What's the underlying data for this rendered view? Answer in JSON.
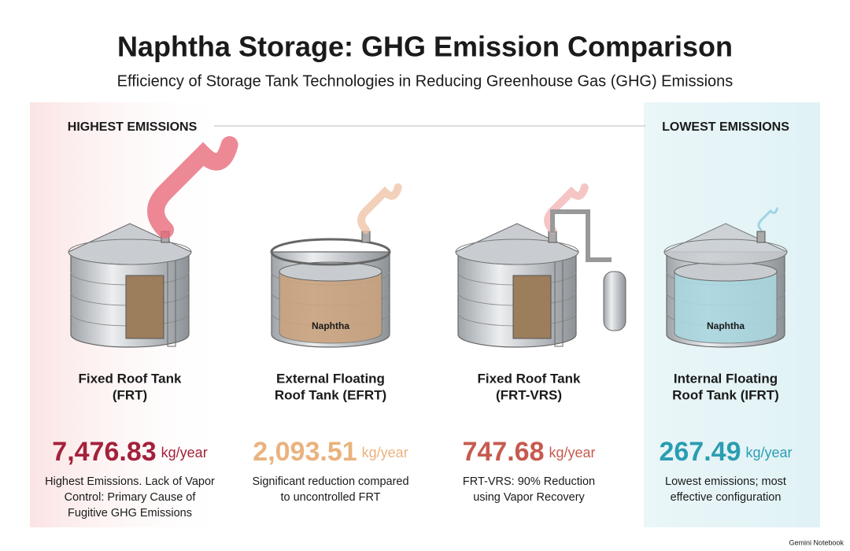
{
  "header": {
    "title": "Naphtha Storage: GHG Emission Comparison",
    "subtitle": "Efficiency of Storage Tank Technologies in Reducing Greenhouse Gas (GHG) Emissions"
  },
  "scale": {
    "left": "HIGHEST EMISSIONS",
    "right": "LOWEST EMISSIONS"
  },
  "tanks": [
    {
      "name": [
        "Fixed Roof Tank",
        "(FRT)"
      ],
      "value": "7,476.83",
      "unit": "kg/year",
      "description": [
        "Highest Emissions. Lack of Vapor",
        "Control: Primary Cause of",
        "Fugitive GHG Emissions"
      ],
      "color": "#a3213a"
    },
    {
      "name": [
        "External Floating",
        "Roof Tank (EFRT)"
      ],
      "value": "2,093.51",
      "unit": "kg/year",
      "description": [
        "Significant reduction compared",
        "to uncontrolled FRT"
      ],
      "liquid": "Naphtha",
      "color": "#eab27e"
    },
    {
      "name": [
        "Fixed Roof Tank",
        "(FRT-VRS)"
      ],
      "value": "747.68",
      "unit": "kg/year",
      "description": [
        "FRT-VRS: 90% Reduction",
        "using Vapor Recovery"
      ],
      "color": "#c65a4e"
    },
    {
      "name": [
        "Internal Floating",
        "Roof Tank (IFRT)"
      ],
      "value": "267.49",
      "unit": "kg/year",
      "description": [
        "Lowest emissions; most",
        "effective configuration"
      ],
      "liquid": "Naphtha",
      "color": "#2b9db2"
    }
  ],
  "footer": "Gemini Notebook"
}
